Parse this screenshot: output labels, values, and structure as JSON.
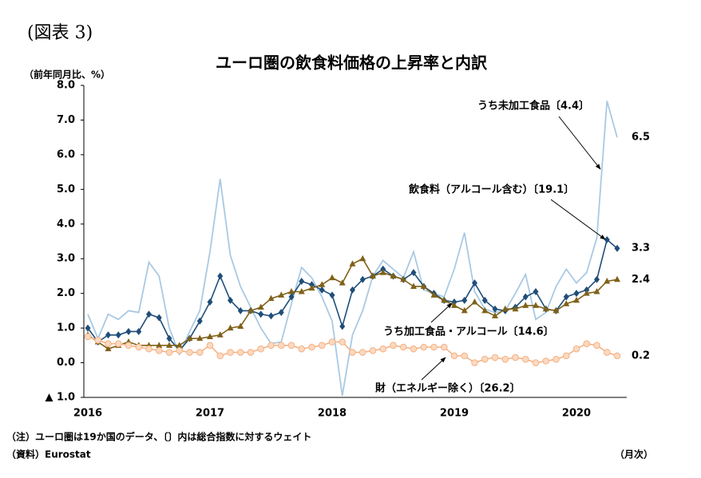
{
  "figure_label": "(図表 3)",
  "chart_data": {
    "type": "line",
    "title": "ユーロ圏の飲食料価格の上昇率と内訳",
    "y_axis_label": "（前年同月比、%）",
    "x_axis_label": "（月次）",
    "note": "（注）ユーロ圏は19か国のデータ、〔〕内は総合指数に対するウェイト",
    "source": "（資料）Eurostat",
    "categories": [
      "2016",
      null,
      null,
      null,
      null,
      null,
      null,
      null,
      null,
      null,
      null,
      null,
      "2017",
      null,
      null,
      null,
      null,
      null,
      null,
      null,
      null,
      null,
      null,
      null,
      "2018",
      null,
      null,
      null,
      null,
      null,
      null,
      null,
      null,
      null,
      null,
      null,
      "2019",
      null,
      null,
      null,
      null,
      null,
      null,
      null,
      null,
      null,
      null,
      null,
      "2020",
      null,
      null,
      null,
      null
    ],
    "ylim": [
      -1,
      8
    ],
    "yticks": [
      {
        "value": -1,
        "label": "▲ 1.0"
      },
      {
        "value": 0,
        "label": "0.0"
      },
      {
        "value": 1,
        "label": "1.0"
      },
      {
        "value": 2,
        "label": "2.0"
      },
      {
        "value": 3,
        "label": "3.0"
      },
      {
        "value": 4,
        "label": "4.0"
      },
      {
        "value": 5,
        "label": "5.0"
      },
      {
        "value": 6,
        "label": "6.0"
      },
      {
        "value": 7,
        "label": "7.0"
      },
      {
        "value": 8,
        "label": "8.0"
      }
    ],
    "grid": false,
    "series": [
      {
        "name": "うち未加工食品〔4.4〕",
        "color": "#a9c9e3",
        "values": [
          1.4,
          0.7,
          1.4,
          1.25,
          1.5,
          1.45,
          2.9,
          2.5,
          1.0,
          0.25,
          0.9,
          1.5,
          3.2,
          5.3,
          3.1,
          2.2,
          1.6,
          1.0,
          0.55,
          0.6,
          1.7,
          2.75,
          2.45,
          1.9,
          1.2,
          -0.95,
          0.8,
          1.5,
          2.5,
          2.95,
          2.7,
          2.45,
          3.2,
          2.1,
          2.0,
          1.9,
          2.7,
          3.75,
          2.05,
          1.55,
          1.45,
          1.5,
          2.0,
          2.55,
          1.25,
          1.45,
          2.2,
          2.7,
          2.3,
          2.6,
          3.6,
          7.55,
          6.5
        ]
      },
      {
        "name": "飲食料（アルコール含む）〔19.1〕",
        "color": "#1f4e79",
        "marker": "diamond",
        "values": [
          1.0,
          0.6,
          0.8,
          0.8,
          0.9,
          0.9,
          1.4,
          1.3,
          0.7,
          0.35,
          0.7,
          1.2,
          1.75,
          2.5,
          1.8,
          1.5,
          1.5,
          1.4,
          1.35,
          1.45,
          1.9,
          2.35,
          2.25,
          2.1,
          1.95,
          1.05,
          2.1,
          2.4,
          2.5,
          2.7,
          2.5,
          2.4,
          2.6,
          2.2,
          2.0,
          1.8,
          1.75,
          1.8,
          2.3,
          1.8,
          1.55,
          1.5,
          1.6,
          1.9,
          2.05,
          1.55,
          1.5,
          1.9,
          2.0,
          2.1,
          2.4,
          3.55,
          3.3
        ]
      },
      {
        "name": "うち加工食品・アルコール〔14.6〕",
        "color": "#7f6118",
        "marker": "triangle",
        "values": [
          0.8,
          0.6,
          0.4,
          0.5,
          0.6,
          0.5,
          0.5,
          0.5,
          0.5,
          0.5,
          0.7,
          0.7,
          0.75,
          0.8,
          1.0,
          1.05,
          1.5,
          1.6,
          1.85,
          1.95,
          2.05,
          2.05,
          2.15,
          2.25,
          2.45,
          2.3,
          2.85,
          3.0,
          2.5,
          2.6,
          2.5,
          2.4,
          2.2,
          2.2,
          1.95,
          1.8,
          1.65,
          1.5,
          1.75,
          1.5,
          1.35,
          1.55,
          1.55,
          1.65,
          1.65,
          1.55,
          1.5,
          1.7,
          1.8,
          2.0,
          2.05,
          2.35,
          2.4
        ]
      },
      {
        "name": "財（エネルギー除く）〔26.2〕",
        "color": "#f4b183",
        "marker": "circle",
        "values": [
          0.75,
          0.65,
          0.55,
          0.55,
          0.5,
          0.45,
          0.4,
          0.35,
          0.3,
          0.35,
          0.3,
          0.3,
          0.5,
          0.2,
          0.3,
          0.3,
          0.3,
          0.4,
          0.5,
          0.5,
          0.5,
          0.4,
          0.45,
          0.5,
          0.6,
          0.6,
          0.3,
          0.3,
          0.35,
          0.4,
          0.5,
          0.45,
          0.4,
          0.45,
          0.45,
          0.45,
          0.2,
          0.2,
          0.0,
          0.1,
          0.15,
          0.1,
          0.15,
          0.1,
          0.0,
          0.05,
          0.1,
          0.2,
          0.4,
          0.55,
          0.5,
          0.3,
          0.2
        ]
      }
    ]
  }
}
